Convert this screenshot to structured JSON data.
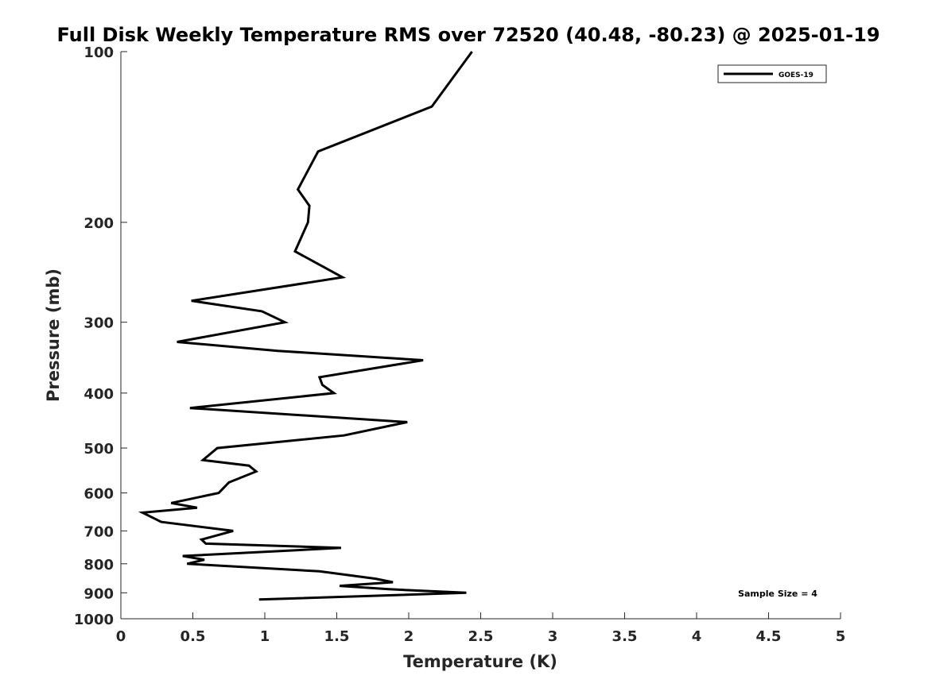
{
  "chart_data": {
    "type": "line",
    "title": "Full Disk Weekly Temperature RMS over 72520 (40.48, -80.23) @ 2025-01-19",
    "xlabel": "Temperature (K)",
    "ylabel": "Pressure (mb)",
    "xlim": [
      0,
      5
    ],
    "ylim": [
      1000,
      100
    ],
    "y_scale": "log",
    "y_reversed": true,
    "x_ticks": [
      0,
      0.5,
      1,
      1.5,
      2,
      2.5,
      3,
      3.5,
      4,
      4.5,
      5
    ],
    "x_tick_labels": [
      "0",
      "0.5",
      "1",
      "1.5",
      "2",
      "2.5",
      "3",
      "3.5",
      "4",
      "4.5",
      "5"
    ],
    "y_ticks": [
      100,
      200,
      300,
      400,
      500,
      600,
      700,
      800,
      900,
      1000
    ],
    "y_tick_labels": [
      "100",
      "200",
      "300",
      "400",
      "500",
      "600",
      "700",
      "800",
      "900",
      "1000"
    ],
    "grid": false,
    "legend_position": "top-right",
    "annotation": "Sample Size = 4",
    "series": [
      {
        "name": "GOES-19",
        "color": "#000000",
        "points": [
          [
            2.44,
            100
          ],
          [
            2.16,
            125
          ],
          [
            1.37,
            150
          ],
          [
            1.23,
            175
          ],
          [
            1.31,
            187
          ],
          [
            1.3,
            200
          ],
          [
            1.21,
            225
          ],
          [
            1.54,
            250
          ],
          [
            0.49,
            275
          ],
          [
            0.98,
            287
          ],
          [
            1.14,
            300
          ],
          [
            0.39,
            325
          ],
          [
            1.09,
            337
          ],
          [
            2.1,
            350
          ],
          [
            1.38,
            375
          ],
          [
            1.4,
            387
          ],
          [
            1.48,
            400
          ],
          [
            0.48,
            425
          ],
          [
            1.99,
            450
          ],
          [
            1.55,
            475
          ],
          [
            0.67,
            500
          ],
          [
            0.57,
            525
          ],
          [
            0.89,
            537
          ],
          [
            0.94,
            550
          ],
          [
            0.75,
            575
          ],
          [
            0.68,
            600
          ],
          [
            0.35,
            625
          ],
          [
            0.53,
            637
          ],
          [
            0.15,
            650
          ],
          [
            0.28,
            675
          ],
          [
            0.78,
            700
          ],
          [
            0.56,
            725
          ],
          [
            0.59,
            737
          ],
          [
            1.53,
            750
          ],
          [
            0.43,
            775
          ],
          [
            0.58,
            787
          ],
          [
            0.46,
            800
          ],
          [
            1.38,
            825
          ],
          [
            1.77,
            850
          ],
          [
            1.89,
            862
          ],
          [
            1.52,
            875
          ],
          [
            1.86,
            887
          ],
          [
            2.4,
            900
          ],
          [
            0.96,
            925
          ]
        ]
      }
    ]
  }
}
